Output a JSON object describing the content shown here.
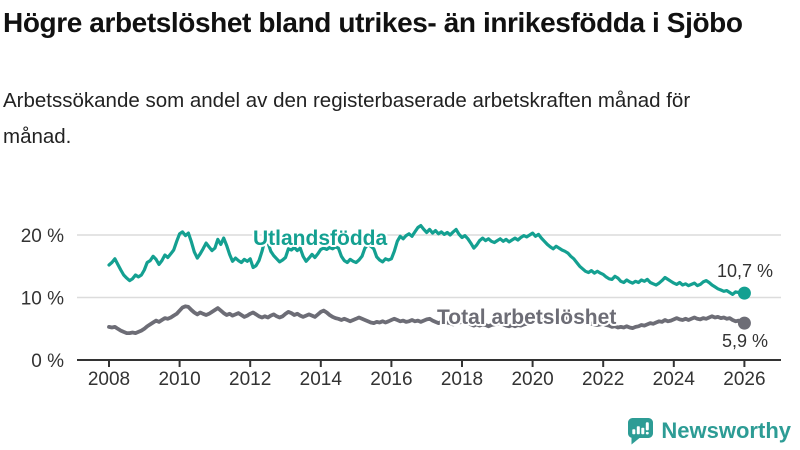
{
  "chart_data": {
    "type": "line",
    "title": "Högre arbetslöshet bland utrikes- än inrikesfödda i Sjöbo",
    "subtitle": "Arbetssökande som andel av den registerbaserade arbetskraften månad för månad.",
    "unit": "%",
    "frequency": "monthly",
    "grid": "horizontal",
    "legend_position": "inline-labels",
    "x_range": [
      2008,
      2026
    ],
    "ylim": [
      0,
      26
    ],
    "points_per_year": 12,
    "x_tick_labels": [
      "2008",
      "2010",
      "2012",
      "2014",
      "2016",
      "2018",
      "2020",
      "2022",
      "2024",
      "2026"
    ],
    "y_ticks": [
      {
        "value": 0,
        "label": "0 %"
      },
      {
        "value": 10,
        "label": "10 %"
      },
      {
        "value": 20,
        "label": "20 %"
      }
    ],
    "series": [
      {
        "name": "Utlandsfödda",
        "color": "#14a091",
        "start_year": 2008,
        "end_value": 10.7,
        "end_label": "10,7 %",
        "values": [
          15.2,
          15.6,
          16.2,
          15.3,
          14.4,
          13.6,
          13.1,
          12.7,
          13.0,
          13.6,
          13.3,
          13.6,
          14.4,
          15.6,
          15.9,
          16.6,
          16.1,
          15.3,
          15.9,
          16.8,
          16.4,
          17.0,
          17.6,
          19.0,
          20.2,
          20.5,
          19.9,
          20.3,
          18.9,
          17.3,
          16.3,
          17.0,
          17.8,
          18.7,
          18.1,
          17.5,
          17.9,
          19.3,
          18.5,
          19.5,
          18.3,
          16.9,
          15.8,
          16.3,
          15.9,
          15.6,
          16.1,
          15.8,
          16.2,
          14.8,
          15.1,
          15.9,
          17.4,
          19.2,
          18.8,
          17.4,
          16.7,
          16.2,
          15.7,
          16.0,
          16.4,
          17.8,
          17.6,
          18.0,
          17.5,
          17.9,
          16.6,
          15.8,
          16.3,
          16.9,
          16.4,
          17.0,
          17.7,
          17.9,
          17.7,
          18.0,
          17.8,
          18.1,
          17.9,
          16.6,
          15.9,
          15.6,
          16.1,
          15.8,
          15.6,
          16.0,
          16.6,
          17.9,
          18.5,
          18.2,
          17.8,
          16.5,
          16.0,
          15.7,
          16.2,
          16.0,
          16.2,
          17.4,
          19.0,
          19.8,
          19.4,
          19.9,
          20.2,
          19.8,
          20.5,
          21.2,
          21.5,
          20.9,
          20.4,
          20.9,
          20.3,
          20.7,
          20.2,
          20.5,
          20.1,
          20.4,
          20.0,
          20.5,
          20.9,
          20.1,
          19.6,
          19.9,
          19.4,
          18.7,
          17.9,
          18.4,
          19.1,
          19.5,
          19.1,
          19.4,
          19.0,
          18.8,
          19.1,
          19.4,
          19.0,
          19.3,
          18.9,
          19.2,
          19.5,
          19.2,
          19.6,
          19.9,
          19.7,
          20.0,
          20.3,
          19.8,
          20.1,
          19.5,
          19.0,
          18.5,
          18.1,
          17.8,
          18.2,
          17.9,
          17.6,
          17.4,
          17.1,
          16.6,
          16.2,
          15.6,
          15.0,
          14.6,
          14.2,
          14.0,
          14.3,
          13.9,
          14.2,
          13.9,
          13.7,
          13.3,
          13.0,
          12.9,
          13.4,
          13.1,
          12.6,
          12.4,
          12.8,
          12.5,
          12.3,
          12.6,
          12.4,
          12.8,
          12.6,
          12.9,
          12.4,
          12.2,
          12.0,
          12.3,
          12.7,
          13.2,
          12.9,
          12.6,
          12.3,
          12.1,
          12.4,
          12.0,
          12.2,
          11.9,
          12.1,
          12.3,
          11.9,
          12.1,
          12.5,
          12.7,
          12.4,
          12.0,
          11.7,
          11.4,
          11.2,
          11.0,
          11.1,
          10.8,
          10.5,
          10.9,
          10.8,
          10.6,
          10.7
        ]
      },
      {
        "name": "Total arbetslöshet",
        "color": "#6d6d76",
        "start_year": 2008,
        "end_value": 5.9,
        "end_label": "5,9 %",
        "values": [
          5.3,
          5.2,
          5.3,
          5.0,
          4.7,
          4.5,
          4.3,
          4.3,
          4.4,
          4.3,
          4.5,
          4.7,
          5.0,
          5.4,
          5.7,
          6.0,
          6.3,
          6.1,
          6.4,
          6.7,
          6.6,
          6.8,
          7.1,
          7.4,
          7.9,
          8.4,
          8.6,
          8.5,
          8.0,
          7.6,
          7.3,
          7.6,
          7.4,
          7.2,
          7.4,
          7.7,
          8.0,
          8.3,
          7.9,
          7.5,
          7.2,
          7.4,
          7.1,
          7.3,
          7.5,
          7.2,
          6.9,
          7.1,
          7.4,
          7.6,
          7.3,
          7.0,
          6.8,
          7.0,
          6.8,
          7.1,
          7.3,
          7.0,
          6.8,
          7.0,
          7.4,
          7.7,
          7.5,
          7.2,
          7.4,
          7.1,
          6.9,
          7.1,
          7.3,
          7.1,
          6.9,
          7.3,
          7.7,
          7.9,
          7.6,
          7.2,
          6.9,
          6.7,
          6.6,
          6.4,
          6.6,
          6.4,
          6.2,
          6.4,
          6.6,
          6.8,
          6.6,
          6.4,
          6.2,
          6.0,
          5.9,
          6.1,
          6.0,
          6.2,
          6.0,
          6.2,
          6.4,
          6.6,
          6.4,
          6.2,
          6.3,
          6.1,
          6.2,
          6.4,
          6.2,
          6.3,
          6.1,
          6.3,
          6.5,
          6.6,
          6.3,
          6.1,
          5.9,
          6.1,
          5.8,
          6.0,
          5.9,
          5.7,
          5.9,
          6.0,
          6.1,
          6.2,
          5.9,
          5.7,
          5.5,
          5.7,
          5.5,
          5.7,
          5.6,
          5.4,
          5.6,
          5.7,
          5.8,
          5.9,
          5.7,
          5.5,
          5.4,
          5.6,
          5.4,
          5.6,
          5.5,
          5.7,
          5.8,
          5.9,
          6.1,
          6.3,
          6.6,
          6.8,
          7.0,
          6.9,
          6.7,
          6.6,
          6.7,
          6.5,
          6.4,
          6.6,
          6.7,
          6.8,
          6.6,
          6.4,
          6.2,
          6.1,
          5.9,
          6.0,
          5.8,
          5.7,
          5.6,
          5.7,
          5.8,
          5.6,
          5.5,
          5.3,
          5.4,
          5.2,
          5.3,
          5.2,
          5.4,
          5.2,
          5.1,
          5.3,
          5.4,
          5.6,
          5.5,
          5.7,
          5.9,
          5.8,
          6.0,
          6.2,
          6.1,
          6.4,
          6.2,
          6.3,
          6.5,
          6.7,
          6.5,
          6.4,
          6.6,
          6.4,
          6.6,
          6.8,
          6.6,
          6.5,
          6.7,
          6.6,
          6.8,
          7.0,
          6.8,
          6.9,
          6.7,
          6.8,
          6.6,
          6.7,
          6.4,
          6.2,
          6.3,
          6.1,
          5.9
        ]
      }
    ]
  },
  "branding": {
    "logo_text": "Newsworthy",
    "logo_color": "#2d9c95"
  }
}
